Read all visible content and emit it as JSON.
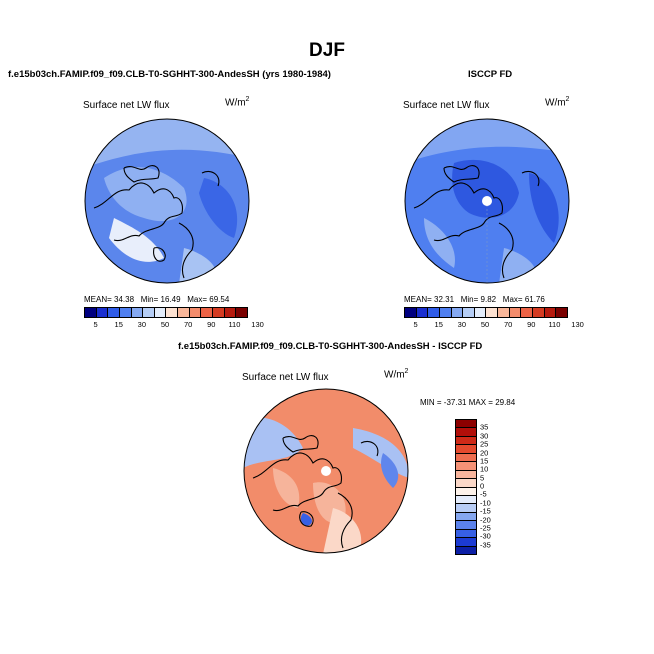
{
  "figure": {
    "title": "DJF"
  },
  "panels": {
    "model": {
      "case_title": "f.e15b03ch.FAMIP.f09_f09.CLB-T0-SGHHT-300-AndesSH (yrs 1980-1984)",
      "variable_label": "Surface net LW flux",
      "units": "W/m",
      "units_sup": "2",
      "stats": {
        "mean_label": "MEAN=",
        "mean": "34.38",
        "min_label": "Min=",
        "min": "16.49",
        "max_label": "Max=",
        "max": "69.54"
      }
    },
    "obs": {
      "case_title": "ISCCP FD",
      "variable_label": "Surface net LW flux",
      "units": "W/m",
      "units_sup": "2",
      "stats": {
        "mean_label": "MEAN=",
        "mean": "32.31",
        "min_label": "Min=",
        "min": "9.82",
        "max_label": "Max=",
        "max": "61.76"
      }
    },
    "diff": {
      "case_title": "f.e15b03ch.FAMIP.f09_f09.CLB-T0-SGHHT-300-AndesSH - ISCCP FD",
      "variable_label": "Surface net LW flux",
      "units": "W/m",
      "units_sup": "2",
      "stats": {
        "min_label": "MIN =",
        "min": "-37.31",
        "max_label": "MAX =",
        "max": "29.84"
      }
    }
  },
  "colorbars": {
    "absolute": {
      "ticks": [
        "5",
        "15",
        "30",
        "50",
        "70",
        "90",
        "110",
        "130"
      ],
      "colors": [
        "#000080",
        "#1a2fd0",
        "#2f5ce8",
        "#4f7ff0",
        "#85a9f2",
        "#b5cdf5",
        "#e3ecfa",
        "#fde2d2",
        "#f9b79a",
        "#f48c6c",
        "#ec6346",
        "#d53b22",
        "#b61a0e",
        "#7a0000"
      ]
    },
    "difference": {
      "ticks": [
        "35",
        "30",
        "25",
        "20",
        "15",
        "10",
        "5",
        "0",
        "-5",
        "-10",
        "-15",
        "-20",
        "-25",
        "-30",
        "-35"
      ],
      "colors": [
        "#8c0000",
        "#b20f0a",
        "#cf2a18",
        "#e54a2e",
        "#ef6e50",
        "#f59276",
        "#f8b59d",
        "#fbd8c8",
        "#fdf2ea",
        "#e4ecfb",
        "#b8cdf6",
        "#85a7f0",
        "#5b82ec",
        "#3760e5",
        "#1c3bd3",
        "#0c1fa6"
      ]
    }
  },
  "map_colors": {
    "model_field": "#5b86ec",
    "model_dark": "#3a66e6",
    "model_light": "#a8c3f3",
    "model_pale": "#e8eefb",
    "obs_field": "#4f7ff0",
    "obs_dark": "#2e58e0",
    "obs_light": "#8fb0f2",
    "diff_warm": "#f28c6a",
    "diff_warm2": "#f6b49b",
    "diff_cool": "#a9c1f3",
    "diff_cool2": "#5f86ec",
    "land_line": "#000000"
  }
}
